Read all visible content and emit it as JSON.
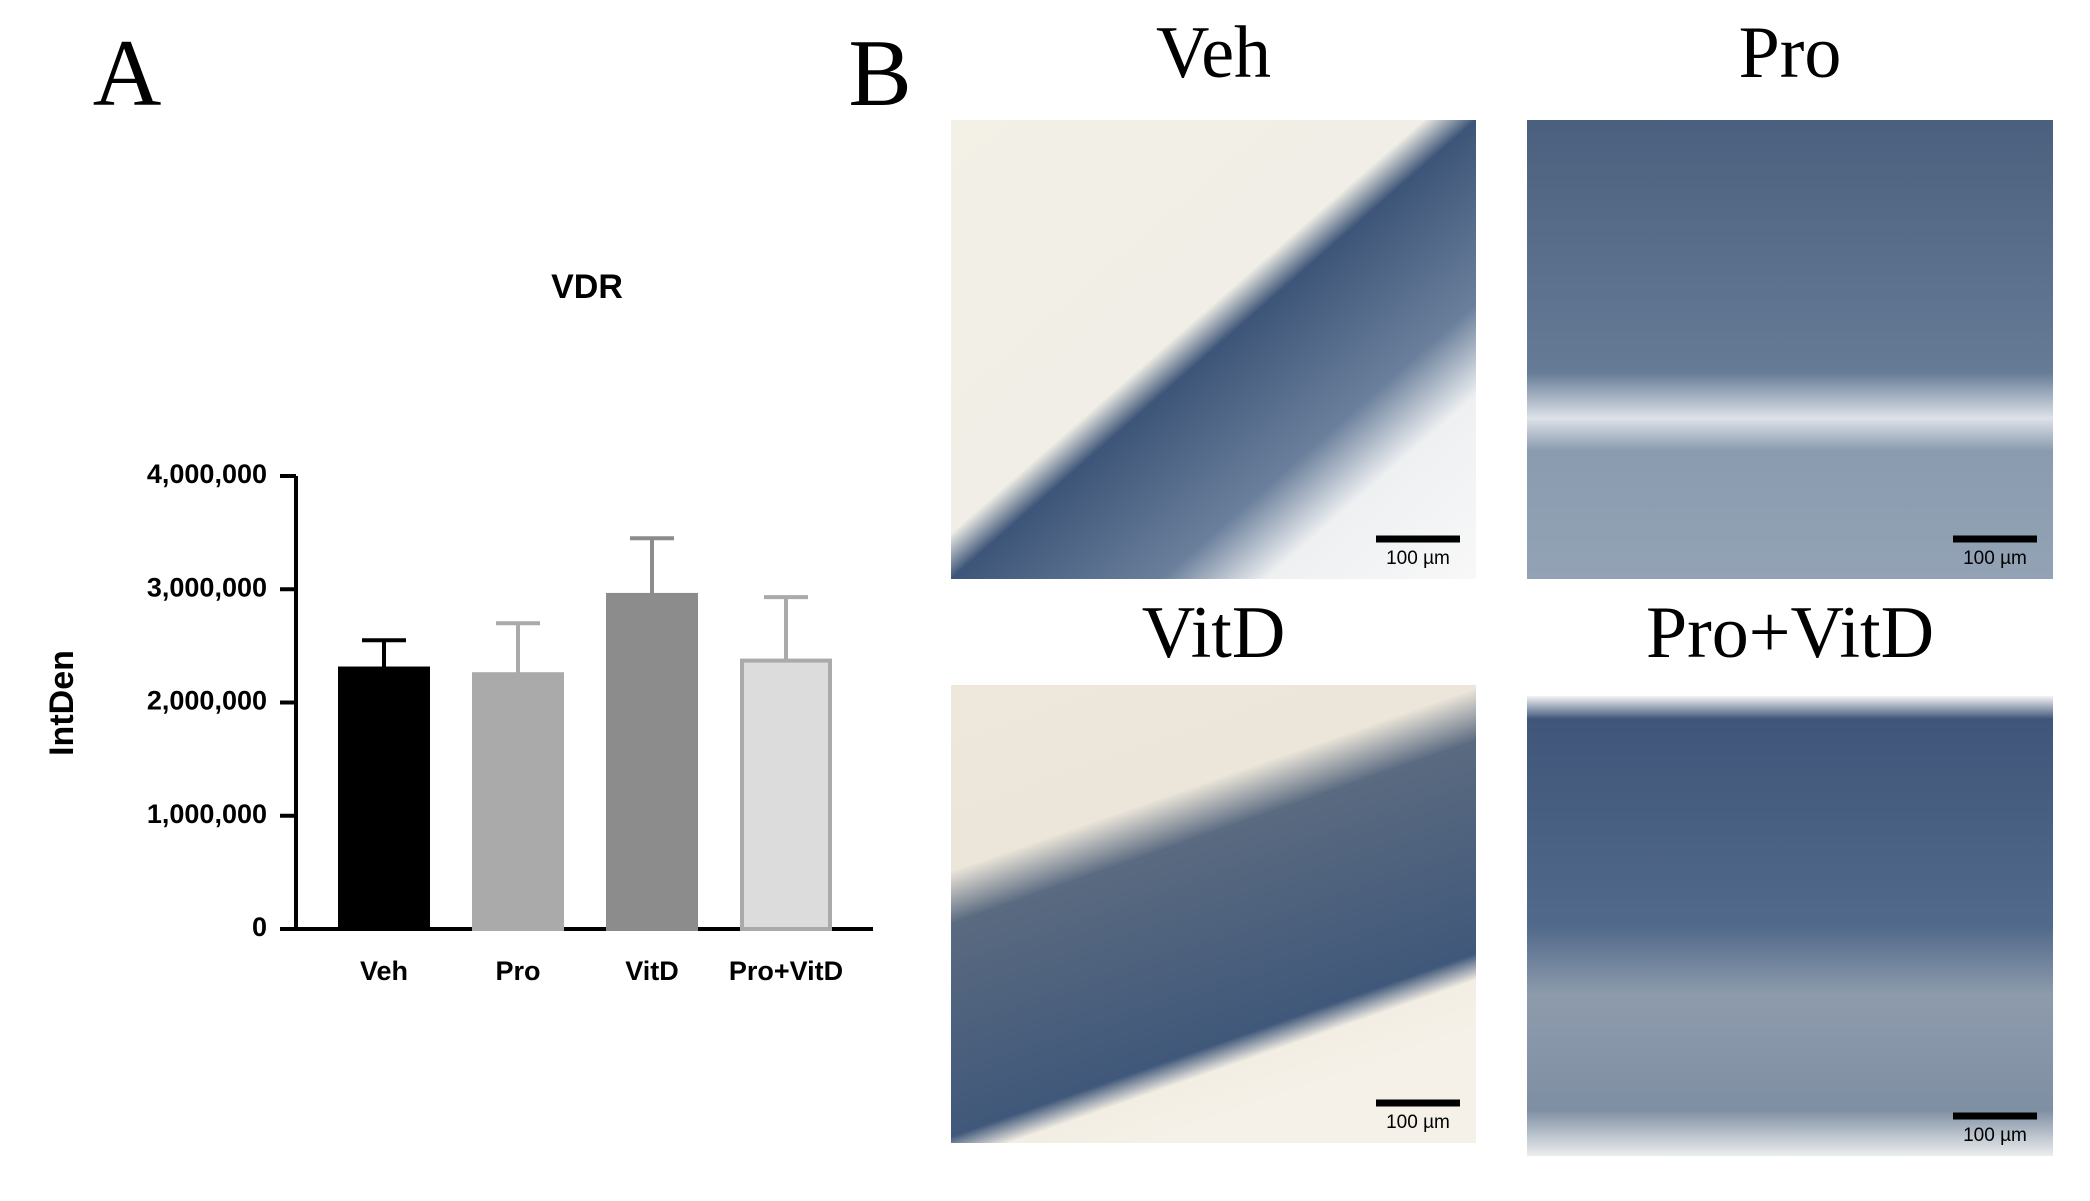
{
  "chart_data": {
    "type": "bar",
    "panel_label": "A",
    "title": "VDR",
    "ylabel": "IntDen",
    "categories": [
      "Veh",
      "Pro",
      "VitD",
      "Pro+VitD"
    ],
    "values": [
      2300000,
      2250000,
      2950000,
      2370000
    ],
    "errors": [
      250000,
      450000,
      500000,
      560000
    ],
    "colors": [
      "#000000",
      "#aaaaaa",
      "#8c8c8c",
      "#dcdcdc"
    ],
    "error_colors": [
      "#000000",
      "#aaaaaa",
      "#8c8c8c",
      "#aaaaaa"
    ],
    "ylim": [
      0,
      4000000
    ],
    "yticks": [
      0,
      {
        "value": 1000000,
        "label": "1,000,000"
      },
      {
        "value": 2000000,
        "label": "2,000,000"
      },
      {
        "value": 3000000,
        "label": "3,000,000"
      },
      {
        "value": 4000000,
        "label": "4,000,000"
      }
    ]
  },
  "panel_b": {
    "label": "B",
    "images": [
      {
        "title": "Veh",
        "scale_bar": "100 µm"
      },
      {
        "title": "Pro",
        "scale_bar": "100 µm"
      },
      {
        "title": "VitD",
        "scale_bar": "100 µm"
      },
      {
        "title": "Pro+VitD",
        "scale_bar": "100 µm"
      }
    ]
  }
}
